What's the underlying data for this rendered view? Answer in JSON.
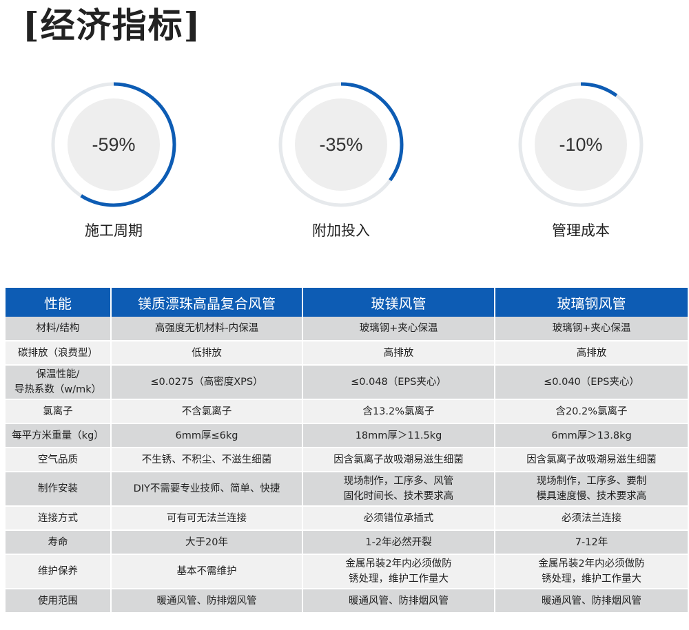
{
  "title": "[经济指标]",
  "colors": {
    "accent": "#0d5cb4",
    "ring_track": "#e6e9ec",
    "ring_inner": "#eeeeee"
  },
  "metrics": [
    {
      "value": "-59%",
      "label": "施工周期",
      "progress": 0.59
    },
    {
      "value": "-35%",
      "label": "附加投入",
      "progress": 0.35
    },
    {
      "value": "-10%",
      "label": "管理成本",
      "progress": 0.1
    }
  ],
  "table": {
    "headers": [
      "性能",
      "镁质漂珠高晶复合风管",
      "玻镁风管",
      "玻璃钢风管"
    ],
    "rows": [
      {
        "cells": [
          "材料/结构",
          "高强度无机材料-内保温",
          "玻璃钢+夹心保温",
          "玻璃钢+夹心保温"
        ]
      },
      {
        "cells": [
          "碳排放（浪费型）",
          "低排放",
          "高排放",
          "高排放"
        ]
      },
      {
        "cells": [
          "保温性能/\n导热系数（w/mk）",
          "≤0.0275（高密度XPS）",
          "≤0.048（EPS夹心）",
          "≤0.040（EPS夹心）"
        ]
      },
      {
        "cells": [
          "氯离子",
          "不含氯离子",
          "含13.2%氯离子",
          "含20.2%氯离子"
        ]
      },
      {
        "cells": [
          "每平方米重量（kg）",
          "6mm厚≤6kg",
          "18mm厚＞11.5kg",
          "6mm厚＞13.8kg"
        ]
      },
      {
        "cells": [
          "空气品质",
          "不生锈、不积尘、不滋生细菌",
          "因含氯离子故吸潮易滋生细菌",
          "因含氯离子故吸潮易滋生细菌"
        ]
      },
      {
        "cells": [
          "制作安装",
          "DIY不需要专业技师、简单、快捷",
          "现场制作，工序多、风管\n固化时间长、技术要求高",
          "现场制作，工序多、要制\n模具速度慢、技术要求高"
        ]
      },
      {
        "cells": [
          "连接方式",
          "可有可无法兰连接",
          "必须错位承插式",
          "必须法兰连接"
        ]
      },
      {
        "cells": [
          "寿命",
          "大于20年",
          "1-2年必然开裂",
          "7-12年"
        ]
      },
      {
        "cells": [
          "维护保养",
          "基本不需维护",
          "金属吊装2年内必须做防\n锈处理，维护工作量大",
          "金属吊装2年内必须做防\n锈处理，维护工作量大"
        ]
      },
      {
        "cells": [
          "使用范围",
          "暖通风管、防排烟风管",
          "暖通风管、防排烟风管",
          "暖通风管、防排烟风管"
        ]
      }
    ]
  }
}
